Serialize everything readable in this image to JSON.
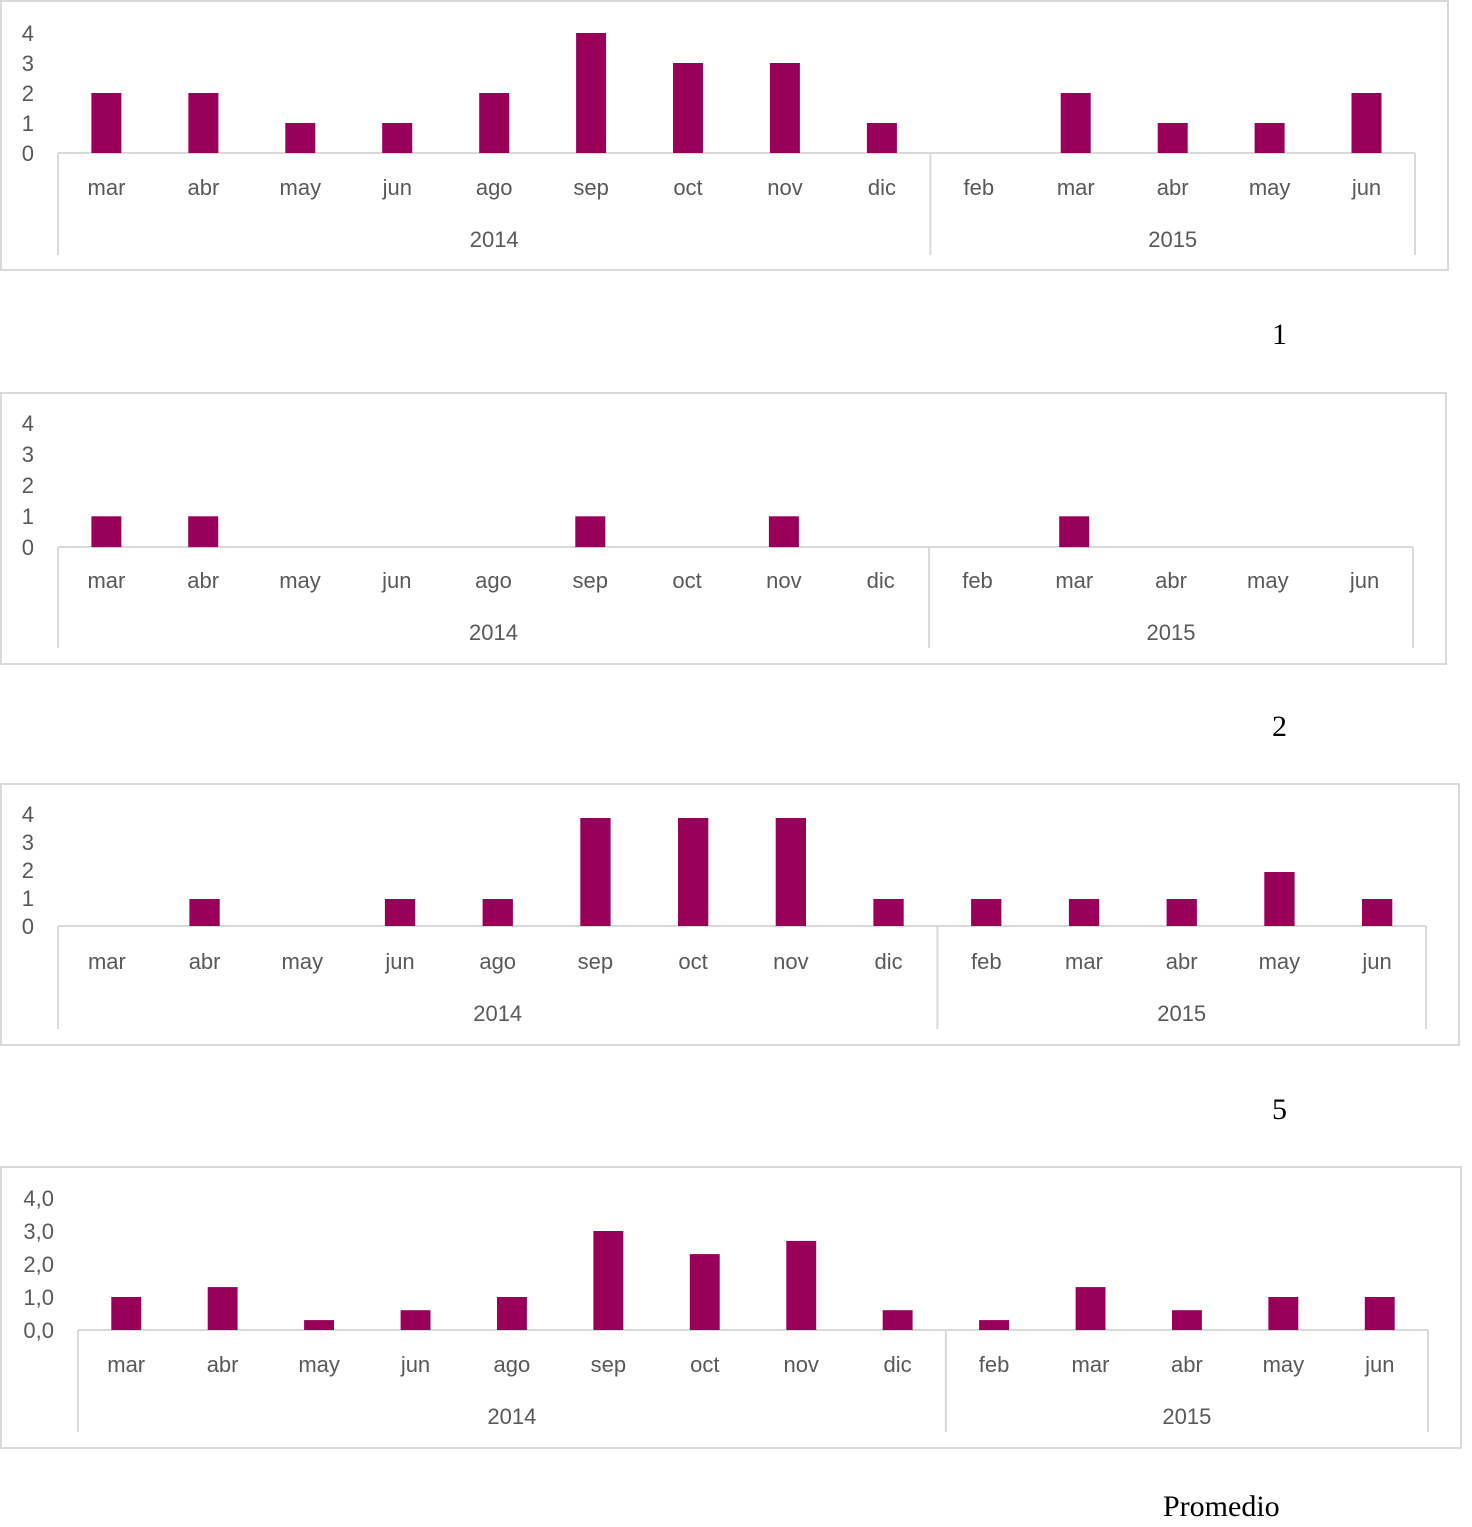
{
  "bar_color": "#99005a",
  "axis_color": "#d9d9d9",
  "text_color": "#595959",
  "chart_data": [
    {
      "type": "bar",
      "caption": "1",
      "groups": [
        {
          "label": "2014",
          "categories": [
            "mar",
            "abr",
            "may",
            "jun",
            "ago",
            "sep",
            "oct",
            "nov",
            "dic"
          ]
        },
        {
          "label": "2015",
          "categories": [
            "feb",
            "mar",
            "abr",
            "may",
            "jun"
          ]
        }
      ],
      "values": [
        2,
        2,
        1,
        1,
        2,
        4,
        3,
        3,
        1,
        0,
        2,
        1,
        1,
        2
      ],
      "yticks": [
        "0",
        "1",
        "2",
        "3",
        "4"
      ],
      "ylim": [
        0,
        4
      ]
    },
    {
      "type": "bar",
      "caption": "2",
      "groups": [
        {
          "label": "2014",
          "categories": [
            "mar",
            "abr",
            "may",
            "jun",
            "ago",
            "sep",
            "oct",
            "nov",
            "dic"
          ]
        },
        {
          "label": "2015",
          "categories": [
            "feb",
            "mar",
            "abr",
            "may",
            "jun"
          ]
        }
      ],
      "values": [
        1,
        1,
        0,
        0,
        0,
        1,
        0,
        1,
        0,
        0,
        1,
        0,
        0,
        0
      ],
      "yticks": [
        "0",
        "1",
        "2",
        "3",
        "4"
      ],
      "ylim": [
        0,
        4
      ]
    },
    {
      "type": "bar",
      "caption": "5",
      "groups": [
        {
          "label": "2014",
          "categories": [
            "mar",
            "abr",
            "may",
            "jun",
            "ago",
            "sep",
            "oct",
            "nov",
            "dic"
          ]
        },
        {
          "label": "2015",
          "categories": [
            "feb",
            "mar",
            "abr",
            "may",
            "jun"
          ]
        }
      ],
      "values": [
        0,
        1,
        0,
        1,
        1,
        4,
        4,
        4,
        1,
        1,
        1,
        1,
        2,
        1
      ],
      "yticks": [
        "0",
        "1",
        "2",
        "3",
        "4"
      ],
      "ylim": [
        0,
        4
      ]
    },
    {
      "type": "bar",
      "caption": "Promedio",
      "groups": [
        {
          "label": "2014",
          "categories": [
            "mar",
            "abr",
            "may",
            "jun",
            "ago",
            "sep",
            "oct",
            "nov",
            "dic"
          ]
        },
        {
          "label": "2015",
          "categories": [
            "feb",
            "mar",
            "abr",
            "may",
            "jun"
          ]
        }
      ],
      "values": [
        1.0,
        1.3,
        0.3,
        0.6,
        1.0,
        3.0,
        2.3,
        2.7,
        0.6,
        0.3,
        1.3,
        0.6,
        1.0,
        1.0
      ],
      "yticks": [
        "0,0",
        "1,0",
        "2,0",
        "3,0",
        "4,0"
      ],
      "ylim": [
        0,
        4
      ]
    }
  ]
}
